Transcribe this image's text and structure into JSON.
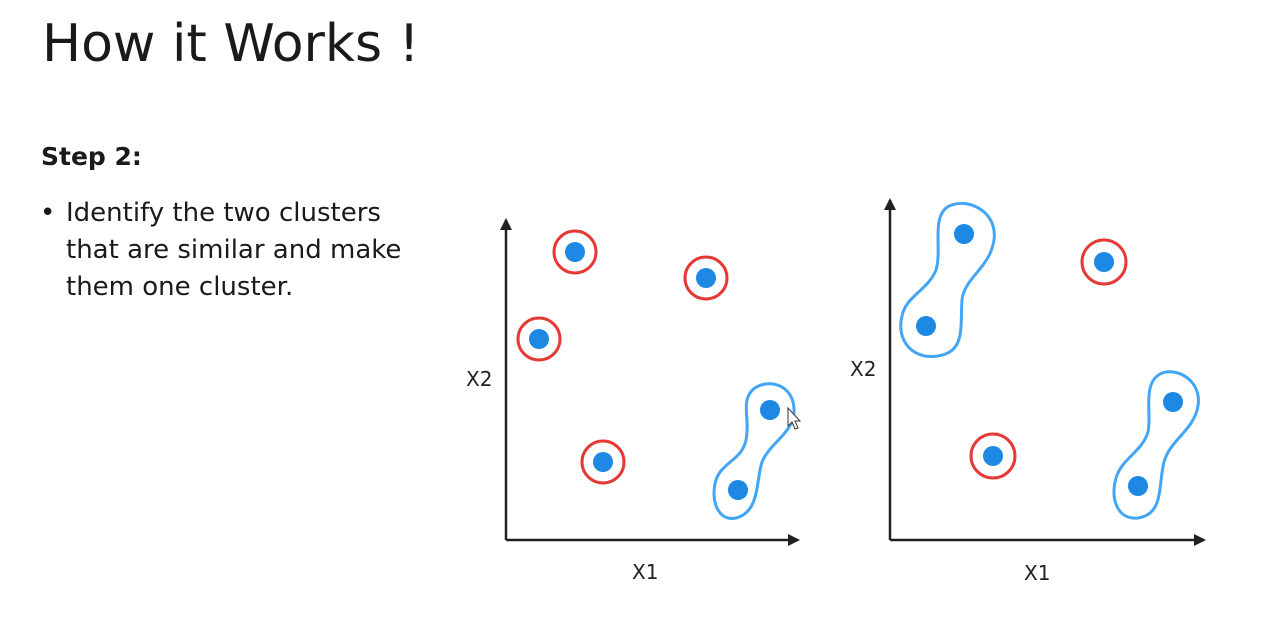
{
  "title": "How it Works !",
  "step": {
    "heading": "Step 2:",
    "bullets": [
      "Identify the two clusters that are similar and make them one cluster."
    ]
  },
  "diagrams": [
    {
      "xlabel": "X1",
      "ylabel": "X2",
      "single_clusters": 4,
      "merged_clusters": 1
    },
    {
      "xlabel": "X1",
      "ylabel": "X2",
      "single_clusters": 2,
      "merged_clusters": 2
    }
  ],
  "colors": {
    "point": "#1e88e5",
    "single_ring": "#e53935",
    "merged_outline": "#42a5f5",
    "axis": "#222222"
  }
}
